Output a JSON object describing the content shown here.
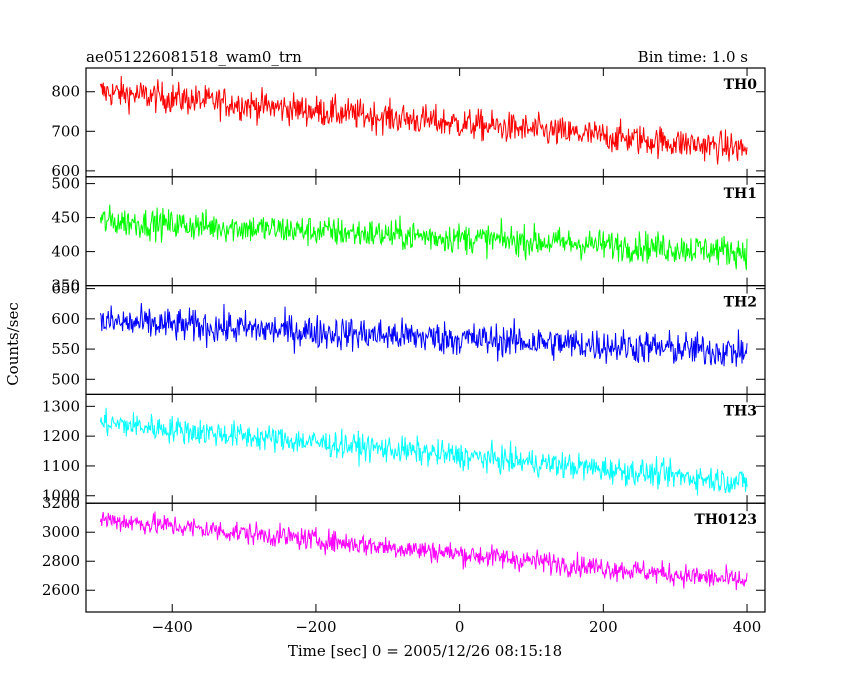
{
  "header": {
    "left_title": "ae051226081518_wam0_trn",
    "right_title": "Bin time: 1.0 s"
  },
  "chart_data": {
    "type": "line",
    "title": "ae051226081518_wam0_trn",
    "bin_time_label": "Bin time: 1.0 s",
    "xlabel": "Time [sec] 0 = 2005/12/26 08:15:18",
    "ylabel": "Counts/sec",
    "xlim": [
      -520,
      425
    ],
    "x_range": [
      -500,
      400
    ],
    "x_ticks": [
      -400,
      -200,
      0,
      200,
      400
    ],
    "x_step": 1,
    "grid": false,
    "panels": [
      {
        "name": "TH0",
        "color": "#ff0000",
        "ylim": [
          585,
          860
        ],
        "y_ticks": [
          600,
          700,
          800
        ],
        "trend_start": 800,
        "trend_end": 655,
        "noise": 28
      },
      {
        "name": "TH1",
        "color": "#00ff00",
        "ylim": [
          350,
          510
        ],
        "y_ticks": [
          350,
          400,
          450,
          500
        ],
        "trend_start": 445,
        "trend_end": 400,
        "noise": 16
      },
      {
        "name": "TH2",
        "color": "#0000ff",
        "ylim": [
          475,
          655
        ],
        "y_ticks": [
          500,
          550,
          600,
          650
        ],
        "trend_start": 595,
        "trend_end": 545,
        "noise": 20
      },
      {
        "name": "TH3",
        "color": "#00ffff",
        "ylim": [
          975,
          1340
        ],
        "y_ticks": [
          1000,
          1100,
          1200,
          1300
        ],
        "trend_start": 1245,
        "trend_end": 1045,
        "noise": 32
      },
      {
        "name": "TH0123",
        "color": "#ff00ff",
        "ylim": [
          2450,
          3200
        ],
        "y_ticks": [
          2600,
          2800,
          3000,
          3200
        ],
        "trend_start": 3090,
        "trend_end": 2660,
        "noise": 55
      }
    ]
  }
}
